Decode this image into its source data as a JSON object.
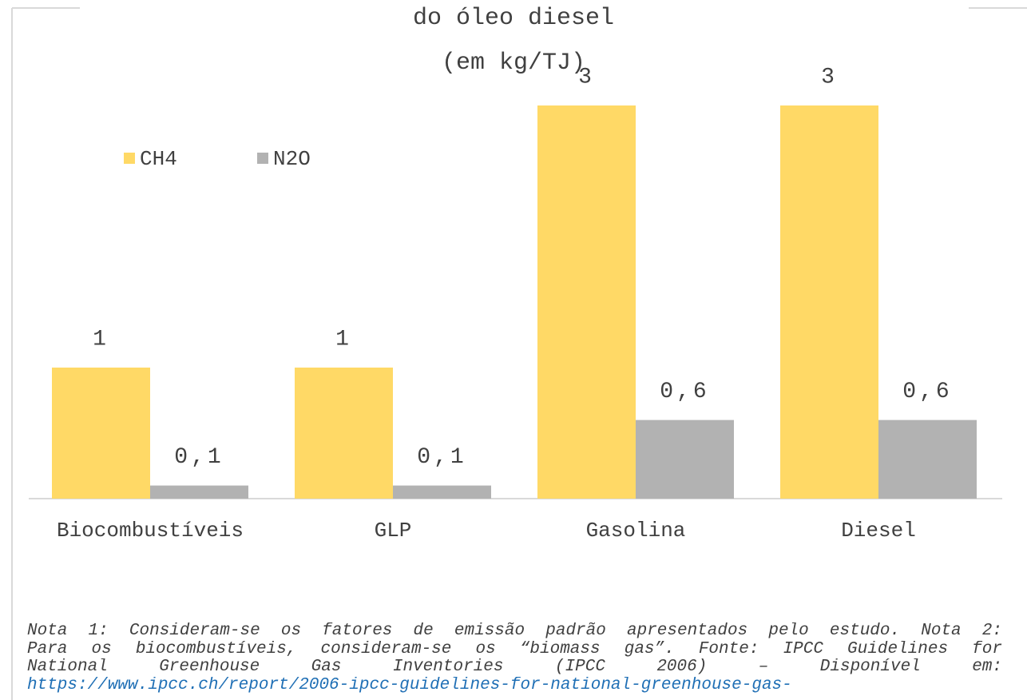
{
  "chart_data": {
    "type": "bar",
    "title_lines": [
      "do óleo diesel",
      "(em kg/TJ)"
    ],
    "categories": [
      "Biocombustíveis",
      "GLP",
      "Gasolina",
      "Diesel"
    ],
    "series": [
      {
        "name": "CH4",
        "color": "#ffd966",
        "values": [
          1,
          1,
          3,
          3
        ]
      },
      {
        "name": "N2O",
        "color": "#b2b2b2",
        "values": [
          0.1,
          0.1,
          0.6,
          0.6
        ],
        "value_labels": [
          "0,1",
          "0,1",
          "0,6",
          "0,6"
        ]
      }
    ],
    "legend": "top-left",
    "note_lines": [
      "Nota 1: Consideram-se os fatores de emissão padrão apresentados pelo estudo. Nota 2:",
      "Para os biocombustíveis, consideram-se os “biomass gas”. Fonte: IPCC Guidelines for",
      "National Greenhouse Gas Inventories (IPCC 2006) – Disponível em:"
    ],
    "link": "https://www.ipcc.ch/report/2006-ipcc-guidelines-for-national-greenhouse-gas-"
  }
}
